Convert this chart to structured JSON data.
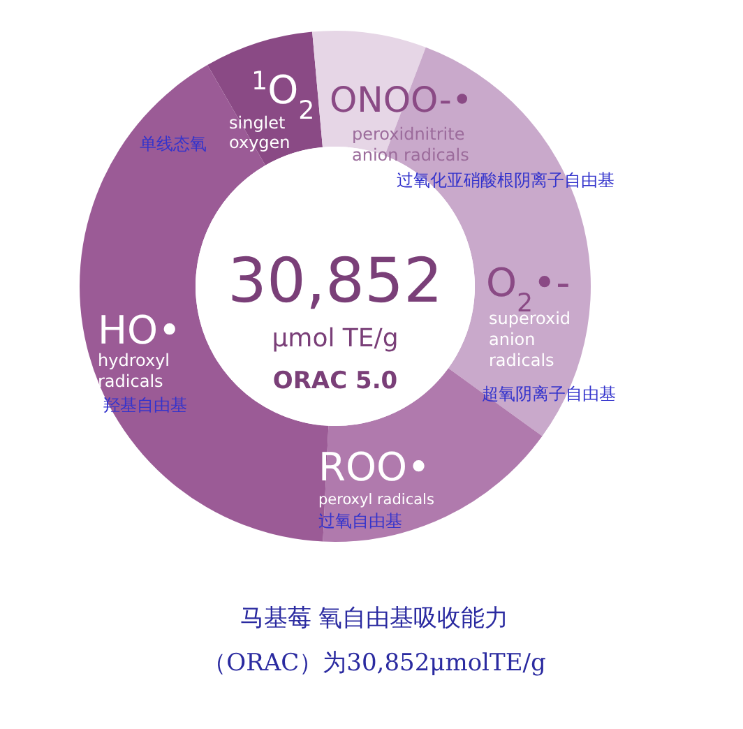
{
  "chart_data": {
    "type": "donut",
    "title": "马基莓 氧自由基吸收能力",
    "subtitle": "（ORAC）为30,852μmolTE/g",
    "categories": [
      "$^{1}$O$_{2}$",
      "ONOO-•",
      "O$_{2}$•-",
      "ROO•",
      "HO•"
    ],
    "values": [
      6.9,
      7.2,
      29.2,
      15.8,
      40.9
    ],
    "colors": [
      "#8a4a85",
      "#e6d6e6",
      "#c9a9cb",
      "#b07aad",
      "#9b5b96"
    ],
    "annotations": [
      "30,852",
      "μmol TE/g",
      "ORAC 5.0",
      "singlet oxygen",
      "单线态氧",
      "peroxidnitrite anion radicals",
      "过氧化亚硝酸根阴离子自由基",
      "superoxid anion radicals",
      "超氧阴离子自由基",
      "peroxyl radicals",
      "过氧自由基",
      "hydroxyl radicals",
      "羟基自由基"
    ]
  }
}
